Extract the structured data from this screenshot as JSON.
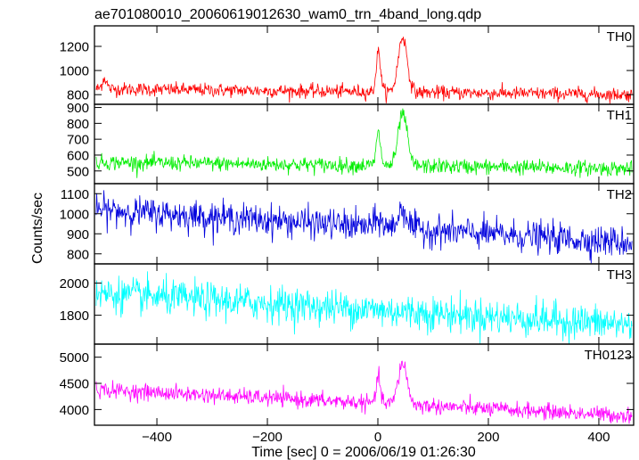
{
  "chart_data": {
    "type": "line",
    "title": "ae701080010_20060619012630_wam0_trn_4band_long.qdp",
    "xlabel": "Time [sec] 0 = 2006/06/19 01:26:30",
    "ylabel": "Counts/sec",
    "xlim": [
      -513,
      463
    ],
    "xticks": [
      -400,
      -200,
      0,
      200,
      400
    ],
    "xtick_labels": [
      "−400",
      "−200",
      "0",
      "200",
      "400"
    ],
    "grid": false,
    "panels": [
      {
        "name": "TH0",
        "color": "#ff0000",
        "ylim": [
          720,
          1370
        ],
        "yticks": [
          800,
          1000,
          1200
        ],
        "baseline": [
          [
            -510,
            848
          ],
          [
            460,
            800
          ]
        ],
        "noise": 28,
        "features": [
          {
            "t": -495,
            "height": 90,
            "width": 4
          },
          {
            "t": 1,
            "height": 330,
            "width": 4
          },
          {
            "t": 45,
            "height": 460,
            "width": 8
          }
        ]
      },
      {
        "name": "TH1",
        "color": "#00ee00",
        "ylim": [
          420,
          920
        ],
        "yticks": [
          500,
          600,
          700,
          800,
          900
        ],
        "baseline": [
          [
            -510,
            555
          ],
          [
            460,
            515
          ]
        ],
        "noise": 24,
        "features": [
          {
            "t": 1,
            "height": 200,
            "width": 4
          },
          {
            "t": 45,
            "height": 330,
            "width": 8
          }
        ]
      },
      {
        "name": "TH2",
        "color": "#0000dd",
        "ylim": [
          750,
          1150
        ],
        "yticks": [
          800,
          900,
          1000,
          1100
        ],
        "baseline": [
          [
            -510,
            1020
          ],
          [
            460,
            855
          ]
        ],
        "noise": 38,
        "features": [
          {
            "t": 2,
            "height": 40,
            "width": 6
          },
          {
            "t": 45,
            "height": 100,
            "width": 8
          }
        ]
      },
      {
        "name": "TH3",
        "color": "#00ffff",
        "ylim": [
          1620,
          2120
        ],
        "yticks": [
          1800,
          2000
        ],
        "baseline": [
          [
            -510,
            1935
          ],
          [
            460,
            1740
          ]
        ],
        "noise": 55,
        "features": []
      },
      {
        "name": "TH0123",
        "color": "#ff00ff",
        "ylim": [
          3700,
          5250
        ],
        "yticks": [
          4000,
          4500,
          5000
        ],
        "baseline": [
          [
            -510,
            4380
          ],
          [
            460,
            3880
          ]
        ],
        "noise": 75,
        "features": [
          {
            "t": 1,
            "height": 480,
            "width": 4
          },
          {
            "t": 45,
            "height": 800,
            "width": 8
          }
        ]
      }
    ]
  }
}
